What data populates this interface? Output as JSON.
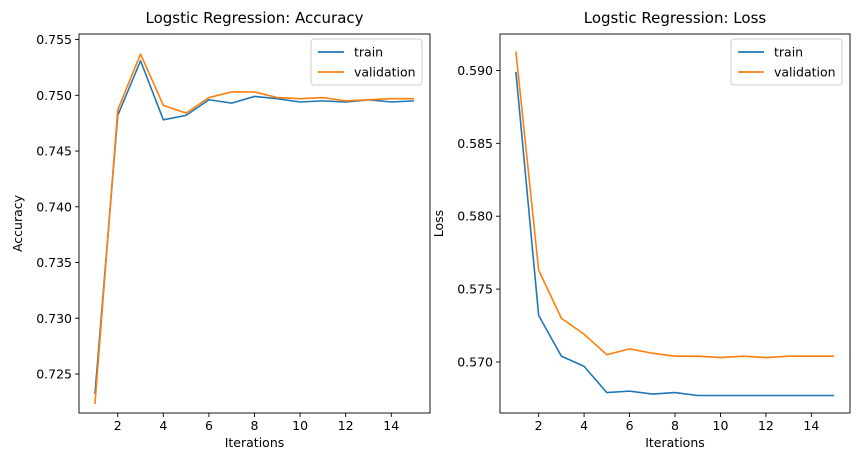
{
  "colors": {
    "train": "#1f77b4",
    "validation": "#ff7f0e"
  },
  "chart_data": [
    {
      "type": "line",
      "title": "Logstic Regression: Accuracy",
      "xlabel": "Iterations",
      "ylabel": "Accuracy",
      "xlim": [
        0.3,
        15.7
      ],
      "ylim": [
        0.7215,
        0.7555
      ],
      "xticks": [
        2,
        4,
        6,
        8,
        10,
        12,
        14
      ],
      "yticks": [
        0.725,
        0.73,
        0.735,
        0.74,
        0.745,
        0.75,
        0.755
      ],
      "ytick_labels": [
        "0.725",
        "0.730",
        "0.735",
        "0.740",
        "0.745",
        "0.750",
        "0.755"
      ],
      "legend_position": "top-right",
      "grid": false,
      "x": [
        1,
        2,
        3,
        4,
        5,
        6,
        7,
        8,
        9,
        10,
        11,
        12,
        13,
        14,
        15
      ],
      "series": [
        {
          "name": "train",
          "color": "#1f77b4",
          "values": [
            0.7232,
            0.7482,
            0.7531,
            0.7478,
            0.7482,
            0.7496,
            0.7493,
            0.7499,
            0.7497,
            0.7494,
            0.7495,
            0.7494,
            0.7496,
            0.7494,
            0.7495
          ]
        },
        {
          "name": "validation",
          "color": "#ff7f0e",
          "values": [
            0.7223,
            0.7487,
            0.7537,
            0.7491,
            0.7484,
            0.7498,
            0.7503,
            0.7503,
            0.7498,
            0.7497,
            0.7498,
            0.7495,
            0.7496,
            0.7497,
            0.7497
          ]
        }
      ]
    },
    {
      "type": "line",
      "title": "Logstic Regression: Loss",
      "xlabel": "Iterations",
      "ylabel": "Loss",
      "xlim": [
        0.3,
        15.7
      ],
      "ylim": [
        0.5665,
        0.5925
      ],
      "xticks": [
        2,
        4,
        6,
        8,
        10,
        12,
        14
      ],
      "yticks": [
        0.57,
        0.575,
        0.58,
        0.585,
        0.59
      ],
      "ytick_labels": [
        "0.570",
        "0.575",
        "0.580",
        "0.585",
        "0.590"
      ],
      "legend_position": "top-right",
      "grid": false,
      "x": [
        1,
        2,
        3,
        4,
        5,
        6,
        7,
        8,
        9,
        10,
        11,
        12,
        13,
        14,
        15
      ],
      "series": [
        {
          "name": "train",
          "color": "#1f77b4",
          "values": [
            0.5899,
            0.5732,
            0.5704,
            0.5697,
            0.5679,
            0.568,
            0.5678,
            0.5679,
            0.5677,
            0.5677,
            0.5677,
            0.5677,
            0.5677,
            0.5677,
            0.5677
          ]
        },
        {
          "name": "validation",
          "color": "#ff7f0e",
          "values": [
            0.5913,
            0.5763,
            0.573,
            0.5719,
            0.5705,
            0.5709,
            0.5706,
            0.5704,
            0.5704,
            0.5703,
            0.5704,
            0.5703,
            0.5704,
            0.5704,
            0.5704
          ]
        }
      ]
    }
  ]
}
